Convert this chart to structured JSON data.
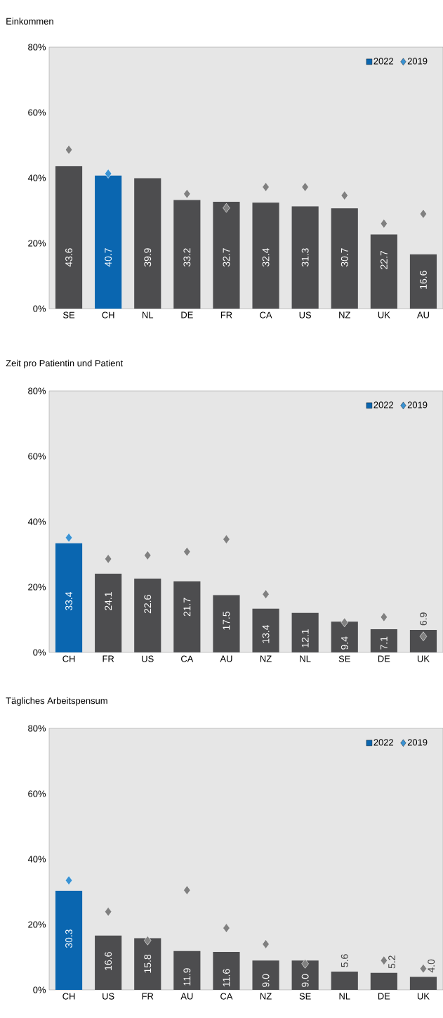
{
  "chart_data": [
    {
      "type": "bar",
      "title": "Einkommen",
      "categories": [
        "SE",
        "CH",
        "NL",
        "DE",
        "FR",
        "CA",
        "US",
        "NZ",
        "UK",
        "AU"
      ],
      "ylim": [
        0,
        80
      ],
      "yticks": [
        {
          "value": 0,
          "label": "0%"
        },
        {
          "value": 20,
          "label": "20%"
        },
        {
          "value": 40,
          "label": "40%"
        },
        {
          "value": 60,
          "label": "60%"
        },
        {
          "value": 80,
          "label": "80%"
        }
      ],
      "legend": "top right",
      "series": [
        {
          "name": "2022",
          "color": "#0a66b0",
          "colors": [
            "#4d4d4f",
            "#0a66b0",
            "#4d4d4f",
            "#4d4d4f",
            "#4d4d4f",
            "#4d4d4f",
            "#4d4d4f",
            "#4d4d4f",
            "#4d4d4f",
            "#4d4d4f"
          ],
          "values": [
            43.6,
            40.7,
            39.9,
            33.2,
            32.7,
            32.4,
            31.3,
            30.7,
            22.7,
            16.6
          ],
          "value_labels": [
            "43.6",
            "40.7",
            "39.9",
            "33.2",
            "32.7",
            "32.4",
            "31.3",
            "30.7",
            "22.7",
            "16.6"
          ]
        },
        {
          "name": "2019",
          "type": "scatter",
          "marker": "diamond",
          "color": "#3a93d4",
          "colors": [
            "#808080",
            "#3a93d4",
            "#808080",
            "#808080",
            "#808080",
            "#808080",
            "#808080",
            "#808080",
            "#808080",
            "#808080"
          ],
          "values": [
            48.6,
            41.3,
            null,
            35.1,
            30.8,
            37.2,
            37.2,
            34.6,
            26.0,
            29.0
          ]
        }
      ]
    },
    {
      "type": "bar",
      "title": "Zeit pro Patientin und Patient",
      "categories": [
        "CH",
        "FR",
        "US",
        "CA",
        "AU",
        "NZ",
        "NL",
        "SE",
        "DE",
        "UK"
      ],
      "ylim": [
        0,
        80
      ],
      "yticks": [
        {
          "value": 0,
          "label": "0%"
        },
        {
          "value": 20,
          "label": "20%"
        },
        {
          "value": 40,
          "label": "40%"
        },
        {
          "value": 60,
          "label": "60%"
        },
        {
          "value": 80,
          "label": "80%"
        }
      ],
      "legend": "top right",
      "series": [
        {
          "name": "2022",
          "color": "#0a66b0",
          "colors": [
            "#0a66b0",
            "#4d4d4f",
            "#4d4d4f",
            "#4d4d4f",
            "#4d4d4f",
            "#4d4d4f",
            "#4d4d4f",
            "#4d4d4f",
            "#4d4d4f",
            "#4d4d4f"
          ],
          "values": [
            33.4,
            24.1,
            22.6,
            21.7,
            17.5,
            13.4,
            12.1,
            9.4,
            7.1,
            6.9
          ],
          "value_labels": [
            "33.4",
            "24.1",
            "22.6",
            "21.7",
            "17.5",
            "13.4",
            "12.1",
            "9.4",
            "7.1",
            "6.9"
          ]
        },
        {
          "name": "2019",
          "type": "scatter",
          "marker": "diamond",
          "color": "#3a93d4",
          "colors": [
            "#3a93d4",
            "#808080",
            "#808080",
            "#808080",
            "#808080",
            "#808080",
            "#808080",
            "#808080",
            "#808080",
            "#808080"
          ],
          "values": [
            35.1,
            28.6,
            29.7,
            30.8,
            34.6,
            17.8,
            null,
            9.2,
            10.8,
            4.9
          ]
        }
      ]
    },
    {
      "type": "bar",
      "title": "Tägliches Arbeitspensum",
      "categories": [
        "CH",
        "US",
        "FR",
        "AU",
        "CA",
        "NZ",
        "SE",
        "NL",
        "DE",
        "UK"
      ],
      "ylim": [
        0,
        80
      ],
      "yticks": [
        {
          "value": 0,
          "label": "0%"
        },
        {
          "value": 20,
          "label": "20%"
        },
        {
          "value": 40,
          "label": "40%"
        },
        {
          "value": 60,
          "label": "60%"
        },
        {
          "value": 80,
          "label": "80%"
        }
      ],
      "legend": "top right",
      "series": [
        {
          "name": "2022",
          "color": "#0a66b0",
          "colors": [
            "#0a66b0",
            "#4d4d4f",
            "#4d4d4f",
            "#4d4d4f",
            "#4d4d4f",
            "#4d4d4f",
            "#4d4d4f",
            "#4d4d4f",
            "#4d4d4f",
            "#4d4d4f"
          ],
          "values": [
            30.3,
            16.6,
            15.8,
            11.9,
            11.6,
            9.0,
            9.0,
            5.6,
            5.2,
            4.0
          ],
          "value_labels": [
            "30.3",
            "16.6",
            "15.8",
            "11.9",
            "11.6",
            "9.0",
            "9.0",
            "5.6",
            "5.2",
            "4.0"
          ]
        },
        {
          "name": "2019",
          "type": "scatter",
          "marker": "diamond",
          "color": "#3a93d4",
          "colors": [
            "#3a93d4",
            "#808080",
            "#808080",
            "#808080",
            "#808080",
            "#808080",
            "#808080",
            "#808080",
            "#808080",
            "#808080"
          ],
          "values": [
            33.5,
            23.9,
            15.1,
            30.5,
            18.9,
            14.0,
            8.0,
            null,
            9.0,
            6.5
          ]
        }
      ]
    }
  ]
}
